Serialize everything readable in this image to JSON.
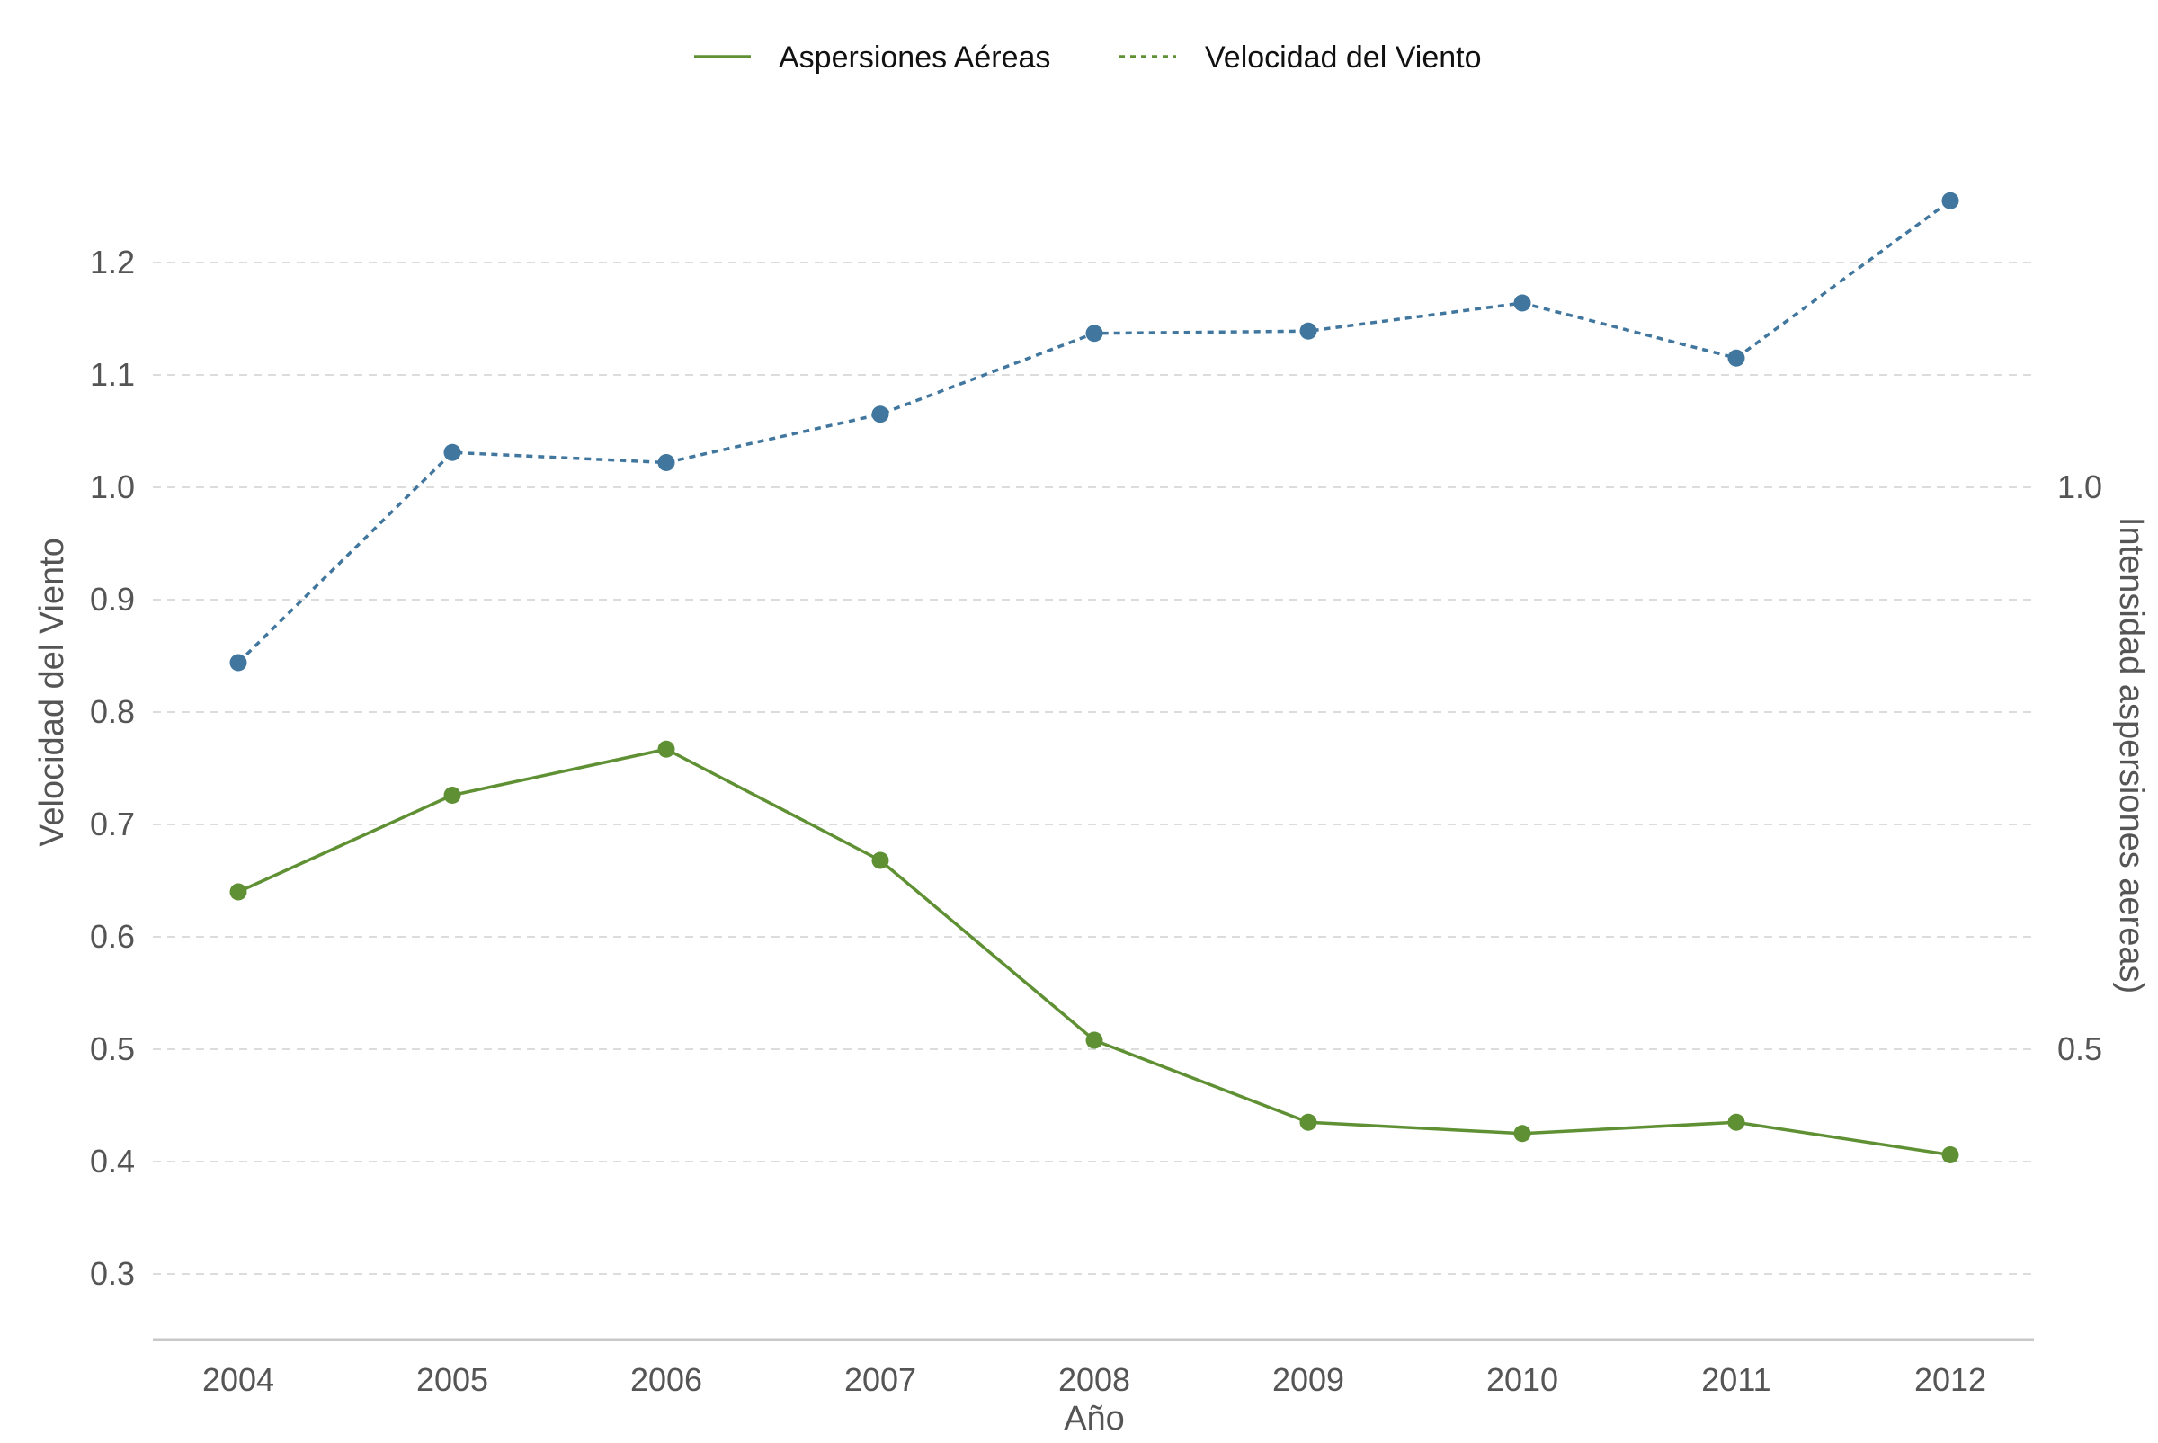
{
  "chart_data": {
    "type": "line",
    "title": "",
    "xlabel": "Año",
    "ylabel": "Velocidad del Viento",
    "y2label": "Intensidad aspersiones aereas)",
    "categories": [
      "2004",
      "2005",
      "2006",
      "2007",
      "2008",
      "2009",
      "2010",
      "2011",
      "2012"
    ],
    "ylim": [
      0.24,
      1.42
    ],
    "yticks": [
      "0.3",
      "0.4",
      "0.5",
      "0.6",
      "0.7",
      "0.8",
      "0.9",
      "1.0",
      "1.1",
      "1.2"
    ],
    "y2ticks": [
      "0.5",
      "1.0"
    ],
    "grid": "horizontal dashed",
    "legend_position": "top-center",
    "series": [
      {
        "name": "Aspersiones Aéreas",
        "axis": "left",
        "line_style": "solid",
        "color": "#5f9134",
        "values": [
          0.64,
          0.726,
          0.767,
          0.668,
          0.508,
          0.435,
          0.425,
          0.435,
          0.406
        ]
      },
      {
        "name": "Velocidad del Viento",
        "axis": "left",
        "line_style": "dotted",
        "color": "#41779e",
        "legend_color": "#5f9134",
        "values": [
          0.844,
          1.031,
          1.022,
          1.065,
          1.137,
          1.139,
          1.164,
          1.115,
          1.255
        ]
      }
    ]
  }
}
